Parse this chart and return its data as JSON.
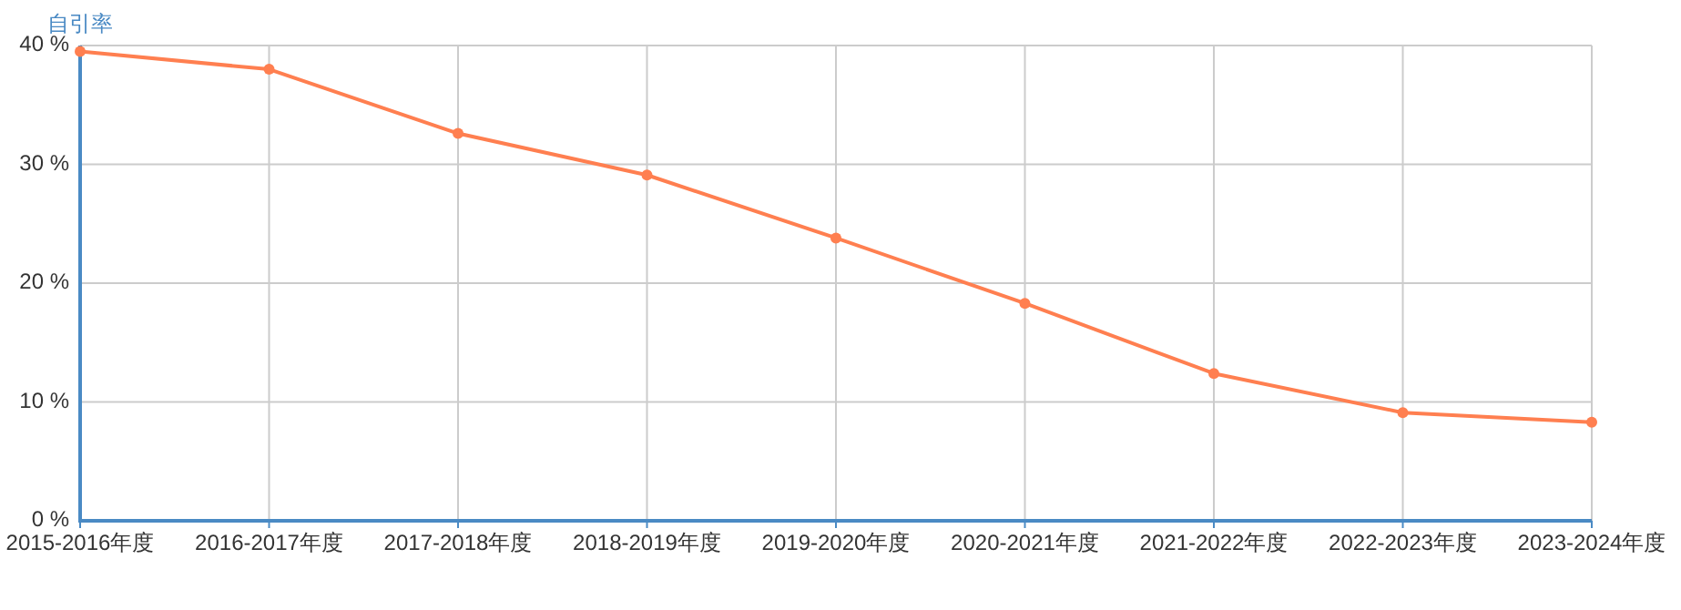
{
  "chart_data": {
    "type": "line",
    "ylabel": "自引率",
    "categories": [
      "2015-2016年度",
      "2016-2017年度",
      "2017-2018年度",
      "2018-2019年度",
      "2019-2020年度",
      "2020-2021年度",
      "2021-2022年度",
      "2022-2023年度",
      "2023-2024年度"
    ],
    "series": [
      {
        "color": "#ff7f50",
        "values": [
          39.5,
          38.0,
          32.6,
          29.1,
          23.8,
          18.3,
          12.4,
          9.1,
          8.3
        ]
      }
    ],
    "ylim": [
      0,
      40
    ],
    "yticks": [
      {
        "value": 0,
        "label": "0 %"
      },
      {
        "value": 10,
        "label": "10 %"
      },
      {
        "value": 20,
        "label": "20 %"
      },
      {
        "value": 30,
        "label": "30 %"
      },
      {
        "value": 40,
        "label": "40 %"
      }
    ],
    "grid": true,
    "marker": "circle",
    "line_style": "solid"
  }
}
